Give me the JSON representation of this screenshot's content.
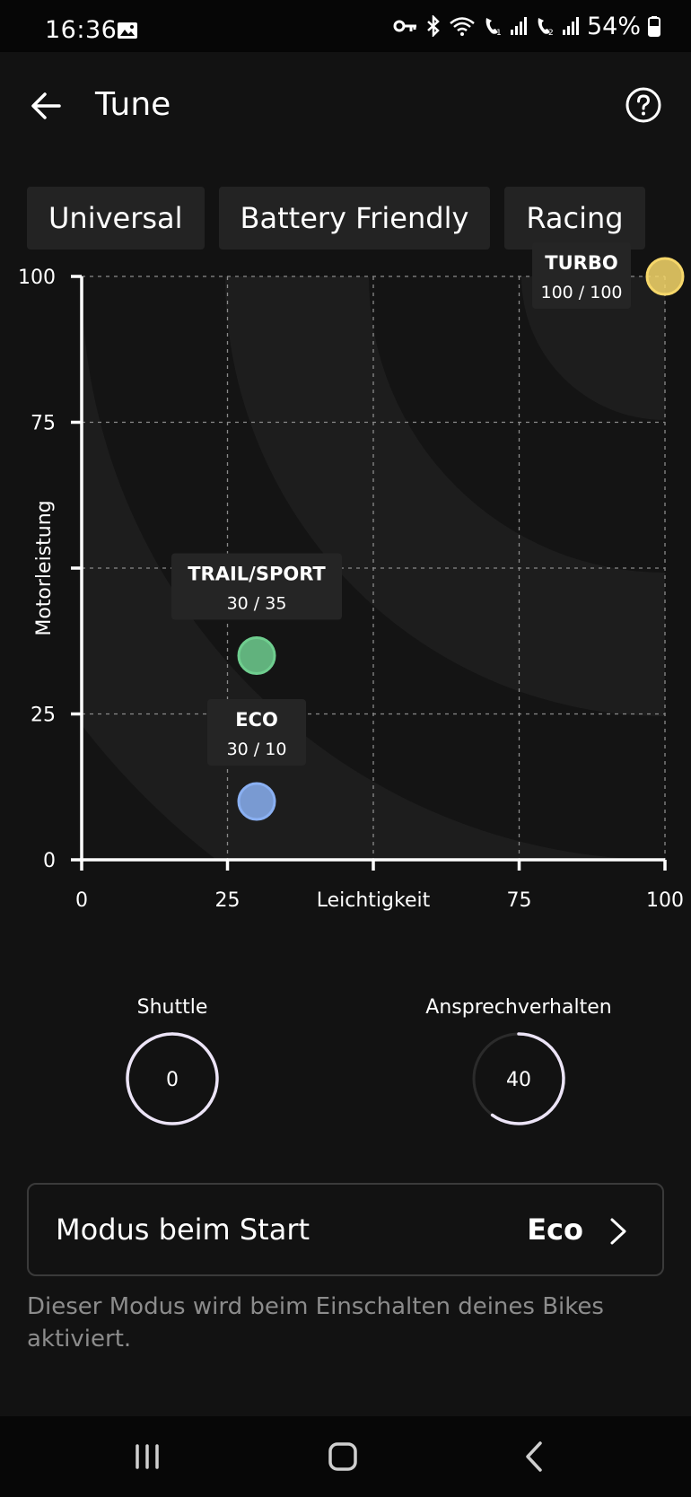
{
  "status_bar": {
    "time": "16:36",
    "battery": "54%",
    "icons": [
      "image-icon",
      "key-icon",
      "bluetooth-icon",
      "wifi-icon",
      "call-sim1-icon",
      "signal-icon",
      "call-sim2-icon",
      "signal-icon",
      "battery-icon"
    ]
  },
  "header": {
    "title": "Tune",
    "back_icon": "arrow-left-icon",
    "help_icon": "help-circle-icon"
  },
  "presets": [
    {
      "label": "Universal"
    },
    {
      "label": "Battery Friendly"
    },
    {
      "label": "Racing"
    }
  ],
  "chart_data": {
    "type": "scatter",
    "xlabel": "Leichtigkeit",
    "ylabel": "Motorleistung",
    "xlim": [
      0,
      100
    ],
    "ylim": [
      0,
      100
    ],
    "x_ticks": [
      "0",
      "25",
      "75",
      "100"
    ],
    "y_ticks": [
      "0",
      "25",
      "75",
      "100"
    ],
    "grid": true,
    "points": [
      {
        "name": "TURBO",
        "label": "100 / 100",
        "x": 100,
        "y": 100,
        "color": "#f6d76a"
      },
      {
        "name": "TRAIL/SPORT",
        "label": "30 / 35",
        "x": 30,
        "y": 35,
        "color": "#6fce8f"
      },
      {
        "name": "ECO",
        "label": "30 / 10",
        "x": 30,
        "y": 10,
        "color": "#8ab0f2"
      }
    ]
  },
  "dials": [
    {
      "label": "Shuttle",
      "value": "0",
      "fraction": 1.0
    },
    {
      "label": "Ansprechverhalten",
      "value": "40",
      "fraction": 0.6
    }
  ],
  "start_mode": {
    "label": "Modus beim Start",
    "value": "Eco",
    "hint": "Dieser Modus wird beim Einschalten deines Bikes aktiviert."
  },
  "nav_bar": {
    "icons": [
      "recent-apps-icon",
      "home-icon",
      "back-icon"
    ]
  }
}
